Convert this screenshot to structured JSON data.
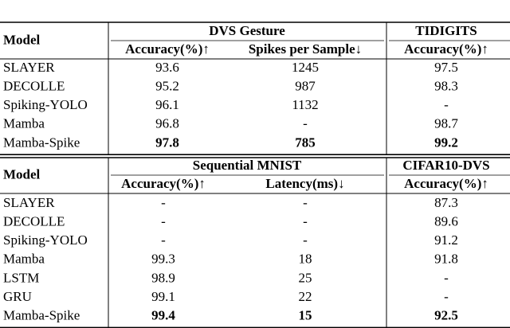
{
  "tables": [
    {
      "header": {
        "model": "Model",
        "groups": [
          "DVS Gesture",
          "TIDIGITS"
        ],
        "columns": [
          "Accuracy(%)↑",
          "Spikes per Sample↓",
          "Accuracy(%)↑"
        ]
      },
      "rows": [
        [
          "SLAYER",
          "93.6",
          "1245",
          "97.5"
        ],
        [
          "DECOLLE",
          "95.2",
          "987",
          "98.3"
        ],
        [
          "Spiking-YOLO",
          "96.1",
          "1132",
          "-"
        ],
        [
          "Mamba",
          "96.8",
          "-",
          "98.7"
        ],
        [
          "Mamba-Spike",
          "97.8",
          "785",
          "99.2"
        ]
      ]
    },
    {
      "header": {
        "model": "Model",
        "groups": [
          "Sequential MNIST",
          "CIFAR10-DVS"
        ],
        "columns": [
          "Accuracy(%)↑",
          "Latency(ms)↓",
          "Accuracy(%)↑"
        ]
      },
      "rows": [
        [
          "SLAYER",
          "-",
          "-",
          "87.3"
        ],
        [
          "DECOLLE",
          "-",
          "-",
          "89.6"
        ],
        [
          "Spiking-YOLO",
          "-",
          "-",
          "91.2"
        ],
        [
          "Mamba",
          "99.3",
          "18",
          "91.8"
        ],
        [
          "LSTM",
          "98.9",
          "25",
          "-"
        ],
        [
          "GRU",
          "99.1",
          "22",
          "-"
        ],
        [
          "Mamba-Spike",
          "99.4",
          "15",
          "92.5"
        ]
      ]
    }
  ]
}
